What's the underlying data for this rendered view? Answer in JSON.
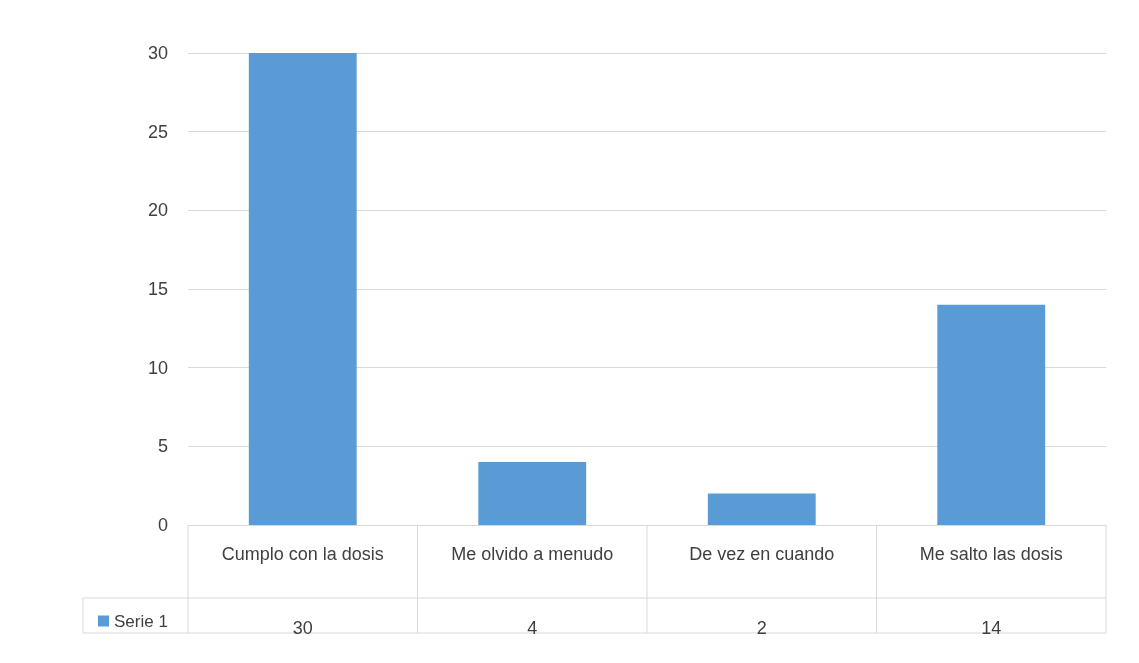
{
  "chart_data": {
    "type": "bar",
    "categories": [
      "Cumplo con la dosis",
      "Me olvido a menudo",
      "De vez en cuando",
      "Me salto las dosis"
    ],
    "series": [
      {
        "name": "Serie 1",
        "color": "#5b9bd5",
        "values": [
          30,
          4,
          2,
          14
        ]
      }
    ],
    "ylim": [
      0,
      30
    ],
    "yticks": [
      0,
      5,
      10,
      15,
      20,
      25,
      30
    ],
    "grid": "y",
    "legend": "bottom left",
    "data_labels": true
  }
}
